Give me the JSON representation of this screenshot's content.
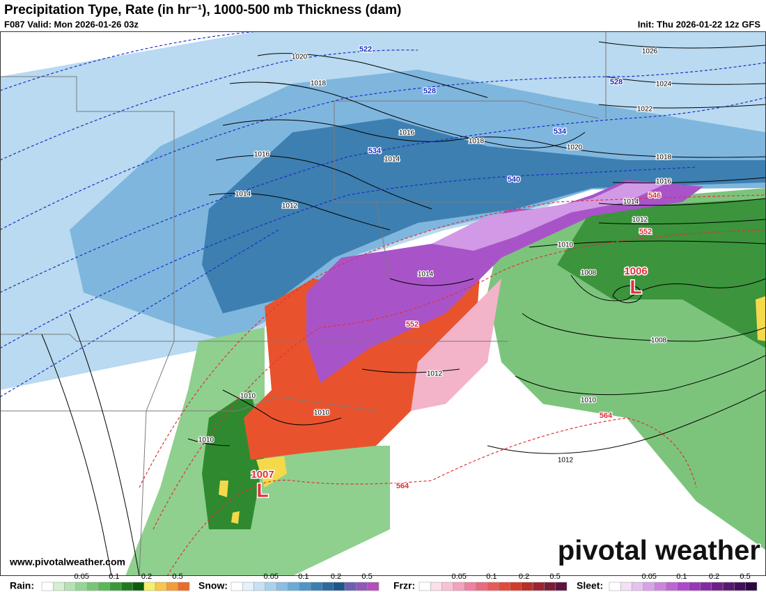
{
  "header": {
    "title": "Precipitation Type, Rate (in hr⁻¹), 1000-500 mb Thickness (dam)",
    "valid": "F087 Valid: Mon 2026-01-26 03z",
    "init": "Init: Thu 2026-01-22 12z GFS"
  },
  "map": {
    "isobar_labels": [
      "1020",
      "1018",
      "1016",
      "1016",
      "1014",
      "1014",
      "1012",
      "1018",
      "1020",
      "1022",
      "1024",
      "1026",
      "1018",
      "1016",
      "1014",
      "1012",
      "1010",
      "1008",
      "1014",
      "1012",
      "1010",
      "1010",
      "1010",
      "1008",
      "1010",
      "1012"
    ],
    "thickness_labels": [
      {
        "text": "522",
        "color": "#1a2fc9"
      },
      {
        "text": "528",
        "color": "#1a2fc9"
      },
      {
        "text": "534",
        "color": "#1a2fc9"
      },
      {
        "text": "534",
        "color": "#1a2fc9"
      },
      {
        "text": "540",
        "color": "#1a2fc9"
      },
      {
        "text": "528",
        "color": "#1a2fc9"
      },
      {
        "text": "546",
        "color": "#e0303a"
      },
      {
        "text": "552",
        "color": "#e0303a"
      },
      {
        "text": "552",
        "color": "#e0303a"
      },
      {
        "text": "564",
        "color": "#e0303a"
      },
      {
        "text": "564",
        "color": "#e0303a"
      }
    ],
    "lows": [
      {
        "symbol": "L",
        "pressure": "1007"
      },
      {
        "symbol": "L",
        "pressure": "1006"
      }
    ]
  },
  "watermark": {
    "url": "www.pivotalweather.com",
    "brand": "pivotal weather"
  },
  "legend": [
    {
      "label": "Rain:",
      "ticks": [
        "0.05",
        "0.1",
        "0.2",
        "0.5"
      ],
      "colors": [
        "#ffffff",
        "#d4f0d4",
        "#b5e2b5",
        "#96d496",
        "#77c677",
        "#58b858",
        "#3a9a3a",
        "#1f7a1f",
        "#0d5c0d",
        "#f4f06b",
        "#f7c64a",
        "#f29c3a",
        "#ea6c2a"
      ]
    },
    {
      "label": "Snow:",
      "ticks": [
        "0.05",
        "0.1",
        "0.2",
        "0.5"
      ],
      "colors": [
        "#ffffff",
        "#e6f2fb",
        "#c8e2f4",
        "#a9d1ec",
        "#8abee3",
        "#6aaad8",
        "#4f94c8",
        "#3a7fb4",
        "#2a6a9e",
        "#1e5687",
        "#6a5fb0",
        "#8e58b8",
        "#b050b8"
      ]
    },
    {
      "label": "Frzr:",
      "ticks": [
        "0.05",
        "0.1",
        "0.2",
        "0.5"
      ],
      "colors": [
        "#ffffff",
        "#fbe0ea",
        "#f7c3d4",
        "#f3a3bb",
        "#ef809f",
        "#ea6a7e",
        "#e85a5a",
        "#e24a3a",
        "#d43a2a",
        "#b82e28",
        "#9a2430",
        "#7a1c38",
        "#5c1440"
      ]
    },
    {
      "label": "Sleet:",
      "ticks": [
        "0.05",
        "0.1",
        "0.2",
        "0.5"
      ],
      "colors": [
        "#ffffff",
        "#f2e0f7",
        "#e5c2ef",
        "#d7a3e6",
        "#c985dd",
        "#bb66d4",
        "#ad48cb",
        "#9a35b8",
        "#842aa0",
        "#6e2088",
        "#581870",
        "#421058",
        "#2c0840"
      ]
    }
  ]
}
